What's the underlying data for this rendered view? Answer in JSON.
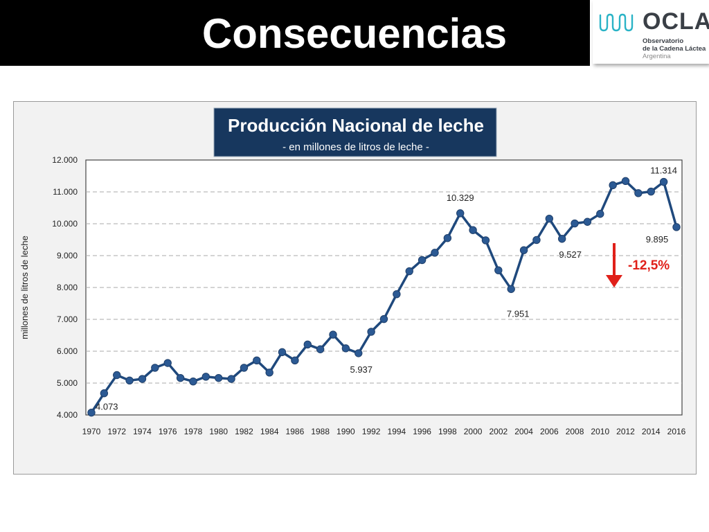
{
  "slide": {
    "title": "Consecuencias"
  },
  "logo": {
    "word": "OCLA",
    "line1": "Observatorio",
    "line2": "de la Cadena Láctea",
    "line3": "Argentina"
  },
  "colors": {
    "title_bar": "#000000",
    "series": "#1f497d",
    "title_box": "#17375e",
    "change": "#e0201a",
    "logo_wave": "#2ab3c6"
  },
  "chart_data": {
    "type": "line",
    "title": "Producción Nacional de leche",
    "subtitle": "- en millones de litros de leche -",
    "xlabel": "",
    "ylabel": "millones de litros de leche",
    "ylim": [
      4000,
      12000
    ],
    "yticks": [
      "4.000",
      "5.000",
      "6.000",
      "7.000",
      "8.000",
      "9.000",
      "10.000",
      "11.000",
      "12.000"
    ],
    "ytick_values": [
      4000,
      5000,
      6000,
      7000,
      8000,
      9000,
      10000,
      11000,
      12000
    ],
    "xticks": [
      "1970",
      "1972",
      "1974",
      "1976",
      "1978",
      "1980",
      "1982",
      "1984",
      "1986",
      "1988",
      "1990",
      "1992",
      "1994",
      "1996",
      "1998",
      "2000",
      "2002",
      "2004",
      "2006",
      "2008",
      "2010",
      "2012",
      "2014",
      "2016"
    ],
    "grid": true,
    "series": [
      {
        "x": [
          1970,
          1971,
          1972,
          1973,
          1974,
          1975,
          1976,
          1977,
          1978,
          1979,
          1980,
          1981,
          1982,
          1983,
          1984,
          1985,
          1986,
          1987,
          1988,
          1989,
          1990,
          1991,
          1992,
          1993,
          1994,
          1995,
          1996,
          1997,
          1998,
          1999,
          2000,
          2001,
          2002,
          2003,
          2004,
          2005,
          2006,
          2007,
          2008,
          2009,
          2010,
          2011,
          2012,
          2013,
          2014,
          2015,
          2016
        ],
        "values": [
          4073,
          4680,
          5250,
          5080,
          5130,
          5480,
          5630,
          5160,
          5050,
          5200,
          5160,
          5130,
          5480,
          5710,
          5330,
          5970,
          5710,
          6210,
          6060,
          6520,
          6090,
          5937,
          6610,
          7010,
          7790,
          8510,
          8860,
          9090,
          9550,
          10329,
          9800,
          9480,
          8540,
          7951,
          9170,
          9490,
          10160,
          9527,
          10010,
          10060,
          10310,
          11210,
          11340,
          10960,
          11010,
          11314,
          9895
        ]
      }
    ],
    "data_labels": [
      {
        "x": 1970,
        "text": "4.073"
      },
      {
        "x": 1991,
        "text": "5.937"
      },
      {
        "x": 1999,
        "text": "10.329"
      },
      {
        "x": 2003,
        "text": "7.951"
      },
      {
        "x": 2007,
        "text": "9.527"
      },
      {
        "x": 2015,
        "text": "11.314"
      },
      {
        "x": 2016,
        "text": "9.895"
      }
    ],
    "annotation": {
      "text": "-12,5%",
      "arrow": "down"
    }
  }
}
